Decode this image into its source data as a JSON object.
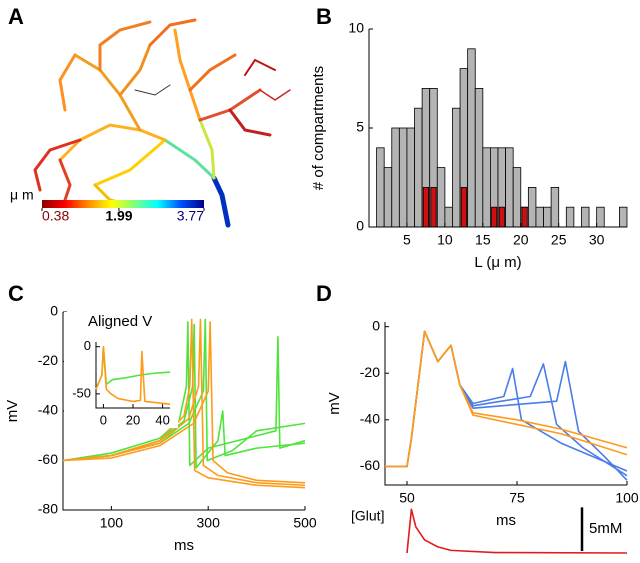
{
  "chart_data": [
    {
      "type": "morphology",
      "panel": "A",
      "colorbar_label": "μ m",
      "clim": [
        0.38,
        3.77
      ],
      "cticks": [
        0.38,
        1.99,
        3.77
      ],
      "colormap": [
        "#8b0000",
        "#ff0000",
        "#ff8c00",
        "#ffff00",
        "#7fff7f",
        "#00ffff",
        "#0050ff",
        "#00008b"
      ]
    },
    {
      "type": "histogram",
      "panel": "B",
      "xlabel": "L (μ m)",
      "ylabel": "# of compartments",
      "bins": [
        1,
        2,
        3,
        4,
        5,
        6,
        7,
        8,
        9,
        10,
        11,
        12,
        13,
        14,
        15,
        16,
        17,
        18,
        19,
        20,
        21,
        22,
        23,
        24,
        25,
        26,
        27,
        28,
        29,
        30,
        31,
        32,
        33,
        34
      ],
      "series": [
        {
          "color": "#b4b4b4",
          "values": [
            4,
            3,
            5,
            5,
            5,
            6,
            7,
            7,
            3,
            1,
            6,
            8,
            9,
            7,
            4,
            4,
            4,
            4,
            3,
            1,
            2,
            1,
            1,
            2,
            0,
            1,
            0,
            1,
            0,
            1,
            0,
            0,
            1
          ]
        },
        {
          "color": "#d01010",
          "values": [
            0,
            0,
            0,
            0,
            0,
            0,
            2,
            2,
            0,
            0,
            0,
            2,
            0,
            0,
            0,
            1,
            1,
            0,
            0,
            1,
            0,
            0,
            0,
            0,
            0,
            0,
            0,
            0,
            0,
            0,
            0,
            0,
            0
          ]
        }
      ],
      "xlim": [
        0,
        34
      ],
      "ylim": [
        0,
        10
      ],
      "xticks": [
        5,
        10,
        15,
        20,
        25,
        30
      ],
      "yticks": [
        0,
        5,
        10
      ]
    },
    {
      "type": "line",
      "panel": "C",
      "xlabel": "ms",
      "ylabel": "mV",
      "xlim": [
        0,
        500
      ],
      "ylim": [
        -80,
        0
      ],
      "xticks": [
        100,
        300,
        500
      ],
      "yticks": [
        0,
        -20,
        -40,
        -60,
        -80
      ],
      "series": [
        {
          "color": "#4ee43c",
          "x": [
            0,
            100,
            200,
            240,
            255,
            258,
            262,
            300,
            400,
            440,
            444,
            448,
            500
          ],
          "values": [
            -60,
            -57,
            -51,
            -44,
            -30,
            -4,
            -62,
            -55,
            -50,
            -48,
            -10,
            -55,
            -52
          ]
        },
        {
          "color": "#4ee43c",
          "x": [
            0,
            100,
            200,
            250,
            268,
            271,
            275,
            320,
            330,
            335,
            400,
            500
          ],
          "values": [
            -60,
            -58,
            -52,
            -44,
            -30,
            -5,
            -63,
            -52,
            -40,
            -58,
            -55,
            -53
          ]
        },
        {
          "color": "#4ee43c",
          "x": [
            0,
            100,
            200,
            260,
            290,
            294,
            298,
            350,
            400,
            500
          ],
          "values": [
            -60,
            -58,
            -53,
            -45,
            -32,
            -3,
            -60,
            -56,
            -48,
            -45
          ]
        },
        {
          "color": "#ff9a1a",
          "x": [
            0,
            100,
            200,
            250,
            262,
            266,
            272,
            300,
            400,
            500
          ],
          "values": [
            -60,
            -58,
            -52,
            -42,
            -30,
            -3,
            -64,
            -67,
            -70,
            -71
          ]
        },
        {
          "color": "#ff9a1a",
          "x": [
            0,
            100,
            200,
            260,
            280,
            284,
            290,
            320,
            400,
            500
          ],
          "values": [
            -60,
            -58,
            -53,
            -43,
            -30,
            -3,
            -62,
            -66,
            -69,
            -70
          ]
        },
        {
          "color": "#ff9a1a",
          "x": [
            0,
            100,
            200,
            270,
            300,
            304,
            310,
            340,
            400,
            500
          ],
          "values": [
            -60,
            -59,
            -54,
            -45,
            -32,
            -4,
            -60,
            -65,
            -68,
            -69
          ]
        }
      ],
      "inset": {
        "title": "Aligned V",
        "xlim": [
          -5,
          45
        ],
        "ylim": [
          -65,
          5
        ],
        "xticks": [
          0,
          20,
          40
        ],
        "yticks": [
          0,
          -50
        ],
        "series": [
          {
            "color": "#4ee43c",
            "x": [
              -5,
              -1,
              0,
              2,
              6,
              15,
              25,
              35,
              45
            ],
            "values": [
              -45,
              -30,
              0,
              -40,
              -35,
              -33,
              -30,
              -28,
              -27
            ]
          },
          {
            "color": "#ff9a1a",
            "x": [
              -5,
              -1,
              0,
              2,
              5,
              10,
              20,
              25,
              26,
              28,
              40,
              45
            ],
            "values": [
              -45,
              -30,
              0,
              -45,
              -50,
              -55,
              -58,
              -57,
              -5,
              -58,
              -60,
              -61
            ]
          }
        ]
      }
    },
    {
      "type": "line",
      "panel": "D",
      "xlabel": "ms",
      "ylabel": "mV",
      "xlim": [
        45,
        100
      ],
      "ylim": [
        -68,
        2
      ],
      "xticks": [
        50,
        75,
        100
      ],
      "yticks": [
        0,
        -20,
        -40,
        -60
      ],
      "series": [
        {
          "color": "#4a7de8",
          "x": [
            45,
            50,
            51,
            54,
            57,
            60,
            62,
            65,
            72,
            74,
            76,
            85,
            100
          ],
          "values": [
            -60,
            -60,
            -48,
            -2,
            -15,
            -8,
            -25,
            -33,
            -30,
            -18,
            -40,
            -50,
            -62
          ]
        },
        {
          "color": "#4a7de8",
          "x": [
            45,
            50,
            51,
            54,
            57,
            60,
            62,
            65,
            78,
            81,
            84,
            90,
            100
          ],
          "values": [
            -60,
            -60,
            -48,
            -2,
            -15,
            -8,
            -25,
            -34,
            -30,
            -16,
            -42,
            -52,
            -64
          ]
        },
        {
          "color": "#4a7de8",
          "x": [
            45,
            50,
            51,
            54,
            57,
            60,
            62,
            65,
            84,
            86,
            89,
            95,
            100
          ],
          "values": [
            -60,
            -60,
            -48,
            -2,
            -15,
            -8,
            -25,
            -35,
            -32,
            -15,
            -45,
            -56,
            -66
          ]
        },
        {
          "color": "#ff9a1a",
          "x": [
            45,
            50,
            51,
            54,
            57,
            60,
            62,
            65,
            75,
            85,
            100
          ],
          "values": [
            -60,
            -60,
            -48,
            -2,
            -15,
            -8,
            -25,
            -37,
            -40,
            -44,
            -52
          ]
        },
        {
          "color": "#ff9a1a",
          "x": [
            45,
            50,
            51,
            54,
            57,
            60,
            62,
            65,
            75,
            85,
            100
          ],
          "values": [
            -60,
            -60,
            -48,
            -2,
            -15,
            -8,
            -25,
            -38,
            -42,
            -46,
            -55
          ]
        }
      ]
    },
    {
      "type": "line",
      "axes": false,
      "label": "[Glut]",
      "xlim": [
        45,
        100
      ],
      "ylim": [
        0,
        5.5
      ],
      "scalebar": {
        "value": 5,
        "label": "5mM"
      },
      "series": [
        {
          "color": "#e41a1a",
          "x": [
            50,
            51,
            52,
            54,
            57,
            60,
            70,
            100
          ],
          "values": [
            0,
            5,
            3,
            1.5,
            0.7,
            0.3,
            0.05,
            0
          ]
        }
      ]
    }
  ]
}
